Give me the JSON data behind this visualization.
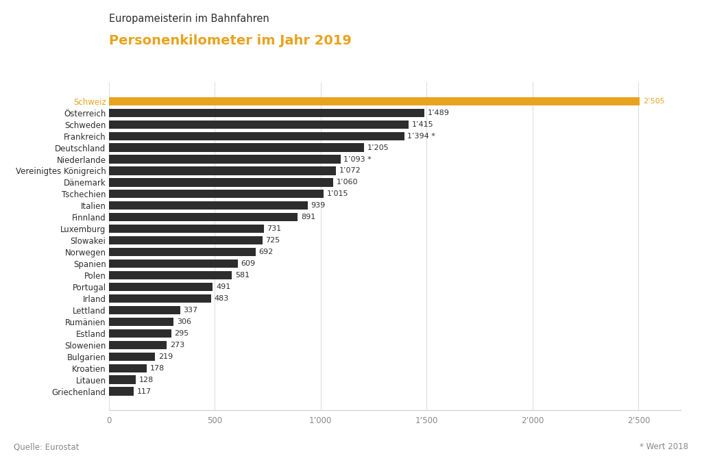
{
  "title_top": "Europameisterin im Bahnfahren",
  "title_main": "Personenkilometer im Jahr 2019",
  "source": "Quelle: Eurostat",
  "footnote": "* Wert 2018",
  "categories": [
    "Schweiz",
    "Österreich",
    "Schweden",
    "Frankreich",
    "Deutschland",
    "Niederlande",
    "Vereinigtes Königreich",
    "Dänemark",
    "Tschechien",
    "Italien",
    "Finnland",
    "Luxemburg",
    "Slowakei",
    "Norwegen",
    "Spanien",
    "Polen",
    "Portugal",
    "Irland",
    "Lettland",
    "Rumänien",
    "Estland",
    "Slowenien",
    "Bulgarien",
    "Kroatien",
    "Litauen",
    "Griechenland"
  ],
  "values": [
    2505,
    1489,
    1415,
    1394,
    1205,
    1093,
    1072,
    1060,
    1015,
    939,
    891,
    731,
    725,
    692,
    609,
    581,
    491,
    483,
    337,
    306,
    295,
    273,
    219,
    178,
    128,
    117
  ],
  "labels": [
    "2’505",
    "1’489",
    "1’415",
    "1’394 *",
    "1’205",
    "1’093 *",
    "1’072",
    "1’060",
    "1’015",
    "939",
    "891",
    "731",
    "725",
    "692",
    "609",
    "581",
    "491",
    "483",
    "337",
    "306",
    "295",
    "273",
    "219",
    "178",
    "128",
    "117"
  ],
  "bar_color_schweiz": "#E8A320",
  "bar_color_others": "#2D2D2D",
  "label_color_schweiz": "#E8A320",
  "label_color_others": "#2D2D2D",
  "title_top_color": "#2D2D2D",
  "title_main_color": "#E8A320",
  "source_color": "#888888",
  "footnote_color": "#888888",
  "background_color": "#FFFFFF",
  "xlim": [
    0,
    2700
  ],
  "xticks": [
    0,
    500,
    1000,
    1500,
    2000,
    2500
  ],
  "xtick_labels": [
    "0",
    "500",
    "1’000",
    "1’500",
    "2’000",
    "2’500"
  ],
  "bar_height": 0.72,
  "figsize": [
    10.24,
    6.66
  ],
  "dpi": 100
}
